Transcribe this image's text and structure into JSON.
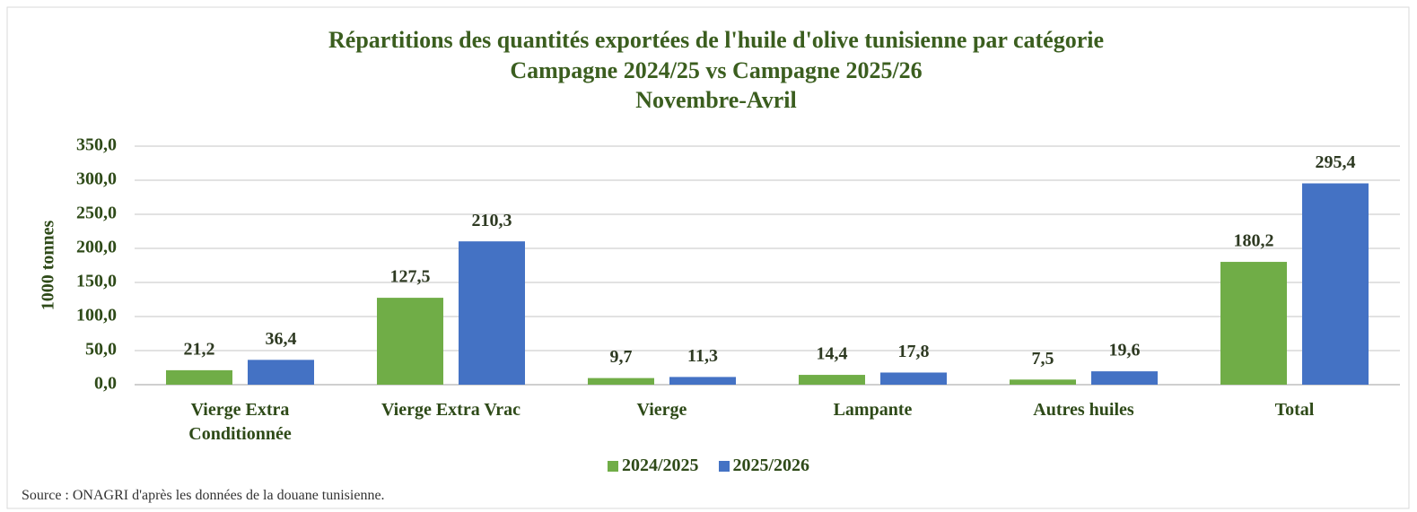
{
  "chart_data": {
    "type": "bar",
    "title": [
      "Répartitions des quantités exportées de l'huile d'olive tunisienne par catégorie",
      "Campagne 2024/25 vs Campagne 2025/26",
      "Novembre-Avril"
    ],
    "y_label": "1000 tonnes",
    "categories": [
      "Vierge Extra Conditionnée",
      "Vierge Extra Vrac",
      "Vierge",
      "Lampante",
      "Autres huiles",
      "Total"
    ],
    "series": [
      {
        "name": "2024/2025",
        "color": "#70ad47",
        "values": [
          21.2,
          127.5,
          9.7,
          14.4,
          7.5,
          180.2
        ],
        "value_labels": [
          "21,2",
          "127,5",
          "9,7",
          "14,4",
          "7,5",
          "180,2"
        ]
      },
      {
        "name": "2025/2026",
        "color": "#4472c4",
        "values": [
          36.4,
          210.3,
          11.3,
          17.8,
          19.6,
          295.4
        ],
        "value_labels": [
          "36,4",
          "210,3",
          "11,3",
          "17,8",
          "19,6",
          "295,4"
        ]
      }
    ],
    "ylim": [
      0,
      350
    ],
    "yticks": [
      {
        "value": 0,
        "label": "0,0"
      },
      {
        "value": 50,
        "label": "50,0"
      },
      {
        "value": 100,
        "label": "100,0"
      },
      {
        "value": 150,
        "label": "150,0"
      },
      {
        "value": 200,
        "label": "200,0"
      },
      {
        "value": 250,
        "label": "250,0"
      },
      {
        "value": 300,
        "label": "300,0"
      },
      {
        "value": 350,
        "label": "350,0"
      }
    ],
    "grid": true,
    "legend": "bottom",
    "source": "Source : ONAGRI d'après les données de la douane tunisienne."
  }
}
